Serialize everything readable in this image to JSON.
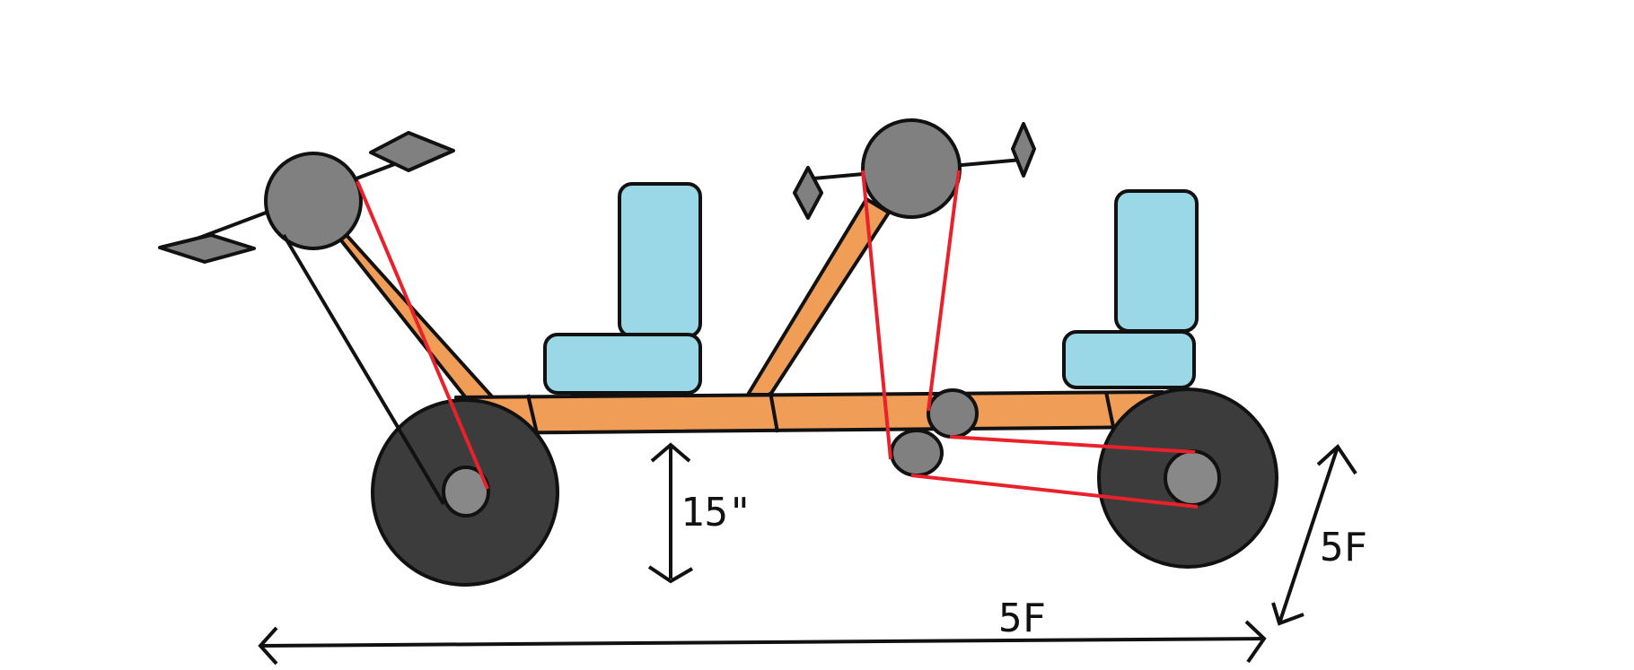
{
  "diagram": {
    "background_color": "#ffffff",
    "colors": {
      "frame": "#ef9d57",
      "seat": "#9ad8e8",
      "wheel": "#3c3c3c",
      "hub": "#888888",
      "sprocket": "#808080",
      "chain": "#e8212a",
      "outline": "#111111"
    },
    "labels": {
      "ground_clearance": "15\"",
      "overall_length": "5F",
      "overall_width": "5F"
    }
  }
}
